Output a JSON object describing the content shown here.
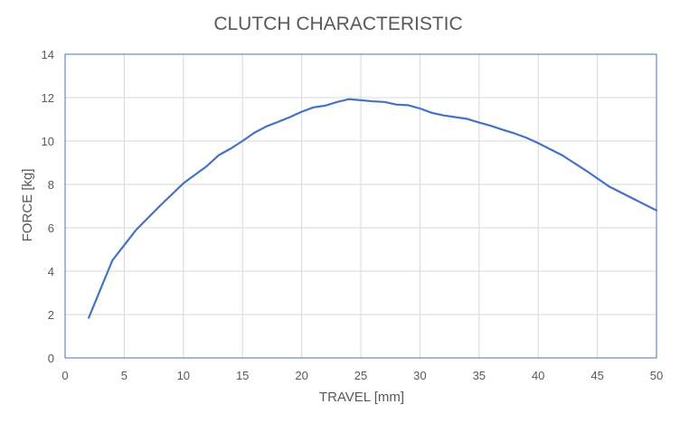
{
  "chart_data": {
    "type": "line",
    "title": "CLUTCH CHARACTERISTIC",
    "xlabel": "TRAVEL [mm]",
    "ylabel": "FORCE [kg]",
    "xlim": [
      0,
      50
    ],
    "ylim": [
      0,
      14
    ],
    "x_ticks": [
      "0",
      "5",
      "10",
      "15",
      "20",
      "25",
      "30",
      "35",
      "40",
      "45",
      "50"
    ],
    "y_ticks": [
      "0",
      "2",
      "4",
      "6",
      "8",
      "10",
      "12",
      "14"
    ],
    "grid": true,
    "legend": "none",
    "series": [
      {
        "color": "#4472c4",
        "x": [
          2,
          4,
          6,
          8,
          10,
          12,
          13,
          14,
          15,
          16,
          17,
          18,
          19,
          20,
          21,
          22,
          23,
          24,
          25,
          26,
          27,
          28,
          29,
          30,
          31,
          32,
          33,
          34,
          35,
          36,
          37,
          38,
          39,
          40,
          42,
          44,
          46,
          48,
          50
        ],
        "y": [
          1.85,
          4.5,
          5.9,
          7.0,
          8.05,
          8.85,
          9.35,
          9.65,
          10.0,
          10.38,
          10.67,
          10.88,
          11.1,
          11.35,
          11.55,
          11.63,
          11.8,
          11.93,
          11.88,
          11.83,
          11.8,
          11.68,
          11.65,
          11.5,
          11.3,
          11.18,
          11.1,
          11.02,
          10.85,
          10.7,
          10.52,
          10.35,
          10.15,
          9.9,
          9.35,
          8.65,
          7.9,
          7.35,
          6.8
        ]
      }
    ]
  }
}
